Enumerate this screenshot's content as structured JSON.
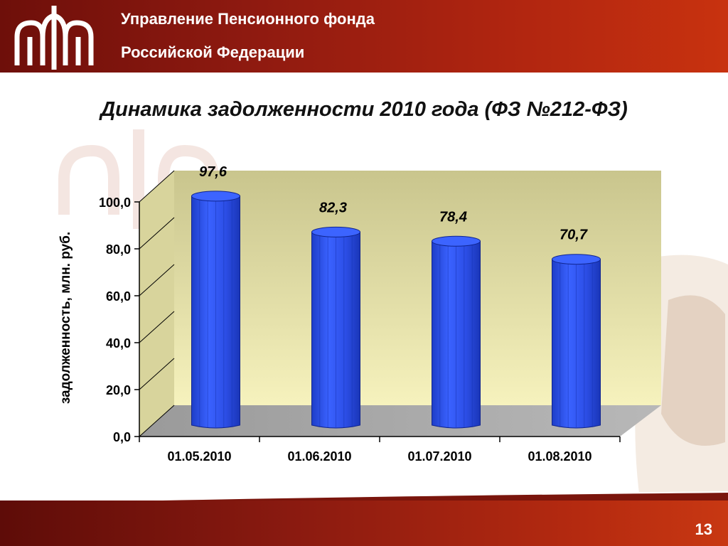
{
  "header": {
    "line1": "Управление Пенсионного фонда",
    "line2": "Российской Федерации"
  },
  "colors": {
    "header_red": "#9a1d10",
    "bar_blue": "#2f56f0",
    "plot_wall": "#d5d29a",
    "floor_gray": "#a3a3a3"
  },
  "page_number": "13",
  "chart_data": {
    "type": "bar",
    "title": "Динамика задолженности 2010 года (ФЗ №212-ФЗ)",
    "ylabel": "задолженность, млн. руб.",
    "xlabel": "",
    "categories": [
      "01.05.2010",
      "01.06.2010",
      "01.07.2010",
      "01.08.2010"
    ],
    "values": [
      97.6,
      82.3,
      78.4,
      70.7
    ],
    "value_labels": [
      "97,6",
      "82,3",
      "78,4",
      "70,7"
    ],
    "ylim": [
      0,
      100
    ],
    "yticks": [
      0,
      20,
      40,
      60,
      80,
      100
    ],
    "ytick_labels": [
      "0,0",
      "20,0",
      "40,0",
      "60,0",
      "80,0",
      "100,0"
    ],
    "grid": false,
    "legend": "none",
    "style": "3d-cylinder"
  }
}
